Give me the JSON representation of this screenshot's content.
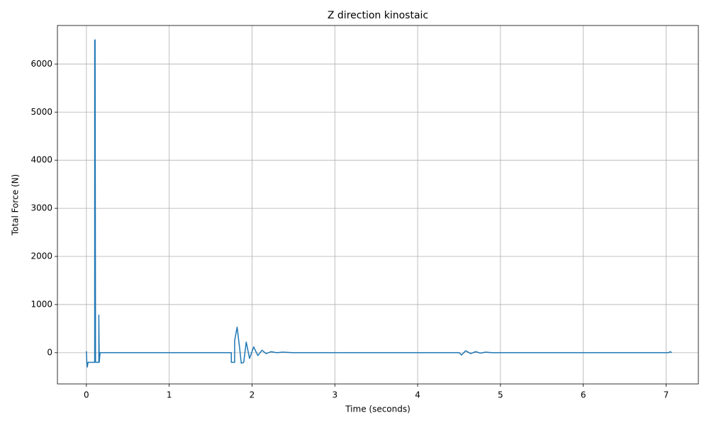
{
  "chart_data": {
    "type": "line",
    "title": "Z direction kinostaic",
    "x_label": "Time (seconds)",
    "y_label": "Total Force (N)",
    "x": [
      0,
      0.005,
      0.01,
      0.02,
      0.1,
      0.1,
      0.105,
      0.11,
      0.15,
      0.15,
      0.155,
      0.165,
      1.75,
      1.75,
      1.79,
      1.79,
      1.82,
      1.85,
      1.87,
      1.9,
      1.93,
      1.97,
      2.02,
      2.07,
      2.12,
      2.17,
      2.23,
      2.3,
      2.37,
      2.5,
      4.5,
      4.53,
      4.58,
      4.64,
      4.7,
      4.76,
      4.82,
      4.9,
      7.03,
      7.05,
      7.07
    ],
    "values": [
      30,
      -200,
      -300,
      -200,
      -200,
      6500,
      6500,
      -200,
      -200,
      780,
      -200,
      0,
      0,
      -200,
      -200,
      250,
      530,
      100,
      -220,
      -200,
      220,
      -120,
      120,
      -60,
      50,
      -20,
      20,
      0,
      10,
      0,
      0,
      -50,
      40,
      -20,
      20,
      -10,
      10,
      0,
      0,
      20,
      0
    ],
    "color": "#1f77b4",
    "xlim": [
      -0.35,
      7.39
    ],
    "ylim": [
      -650,
      6800
    ],
    "xticks": [
      0,
      1,
      2,
      3,
      4,
      5,
      6,
      7
    ],
    "yticks": [
      0,
      1000,
      2000,
      3000,
      4000,
      5000,
      6000
    ],
    "grid": true
  }
}
